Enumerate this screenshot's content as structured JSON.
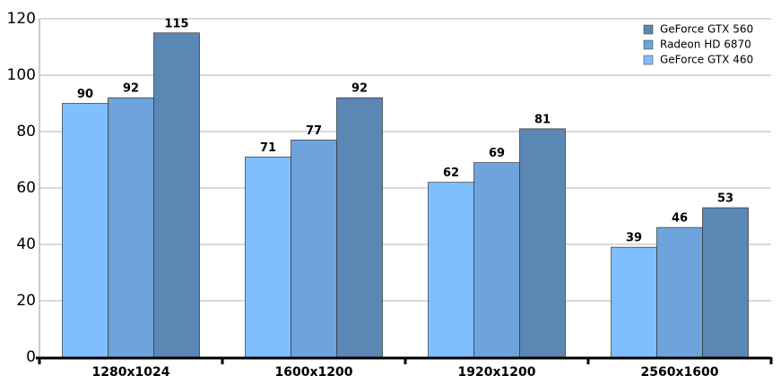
{
  "chart_data": {
    "type": "bar",
    "categories": [
      "1280x1024",
      "1600x1200",
      "1920x1200",
      "2560x1600"
    ],
    "series": [
      {
        "name": "GeForce GTX 560",
        "color": "#5b87b5",
        "values": [
          115,
          92,
          81,
          53
        ]
      },
      {
        "name": "Radeon HD 6870",
        "color": "#6fa3dc",
        "values": [
          92,
          77,
          69,
          46
        ]
      },
      {
        "name": "GeForce GTX 460",
        "color": "#80bfff",
        "values": [
          90,
          71,
          62,
          39
        ]
      }
    ],
    "ylim": [
      0,
      120
    ],
    "yticks": [
      0,
      20,
      40,
      60,
      80,
      100,
      120
    ],
    "grid": true,
    "legend": "top-right"
  }
}
